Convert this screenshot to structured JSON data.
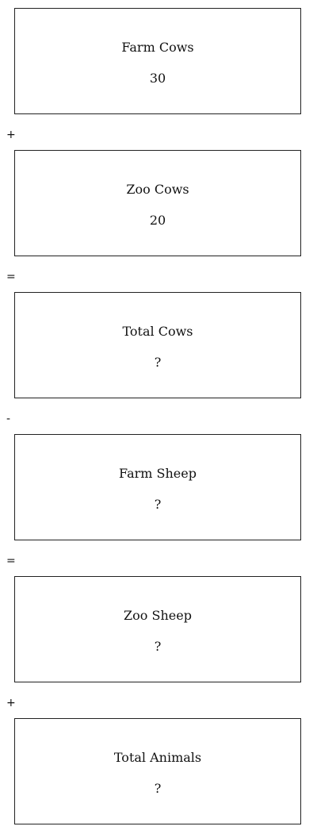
{
  "steps": [
    {
      "title": "Farm Cows",
      "value": "30"
    },
    {
      "title": "Zoo Cows",
      "value": "20"
    },
    {
      "title": "Total Cows",
      "value": "?"
    },
    {
      "title": "Farm Sheep",
      "value": "?"
    },
    {
      "title": "Zoo Sheep",
      "value": "?"
    },
    {
      "title": "Total Animals",
      "value": "?"
    }
  ],
  "operators": [
    "+",
    "=",
    "-",
    "=",
    "+"
  ]
}
